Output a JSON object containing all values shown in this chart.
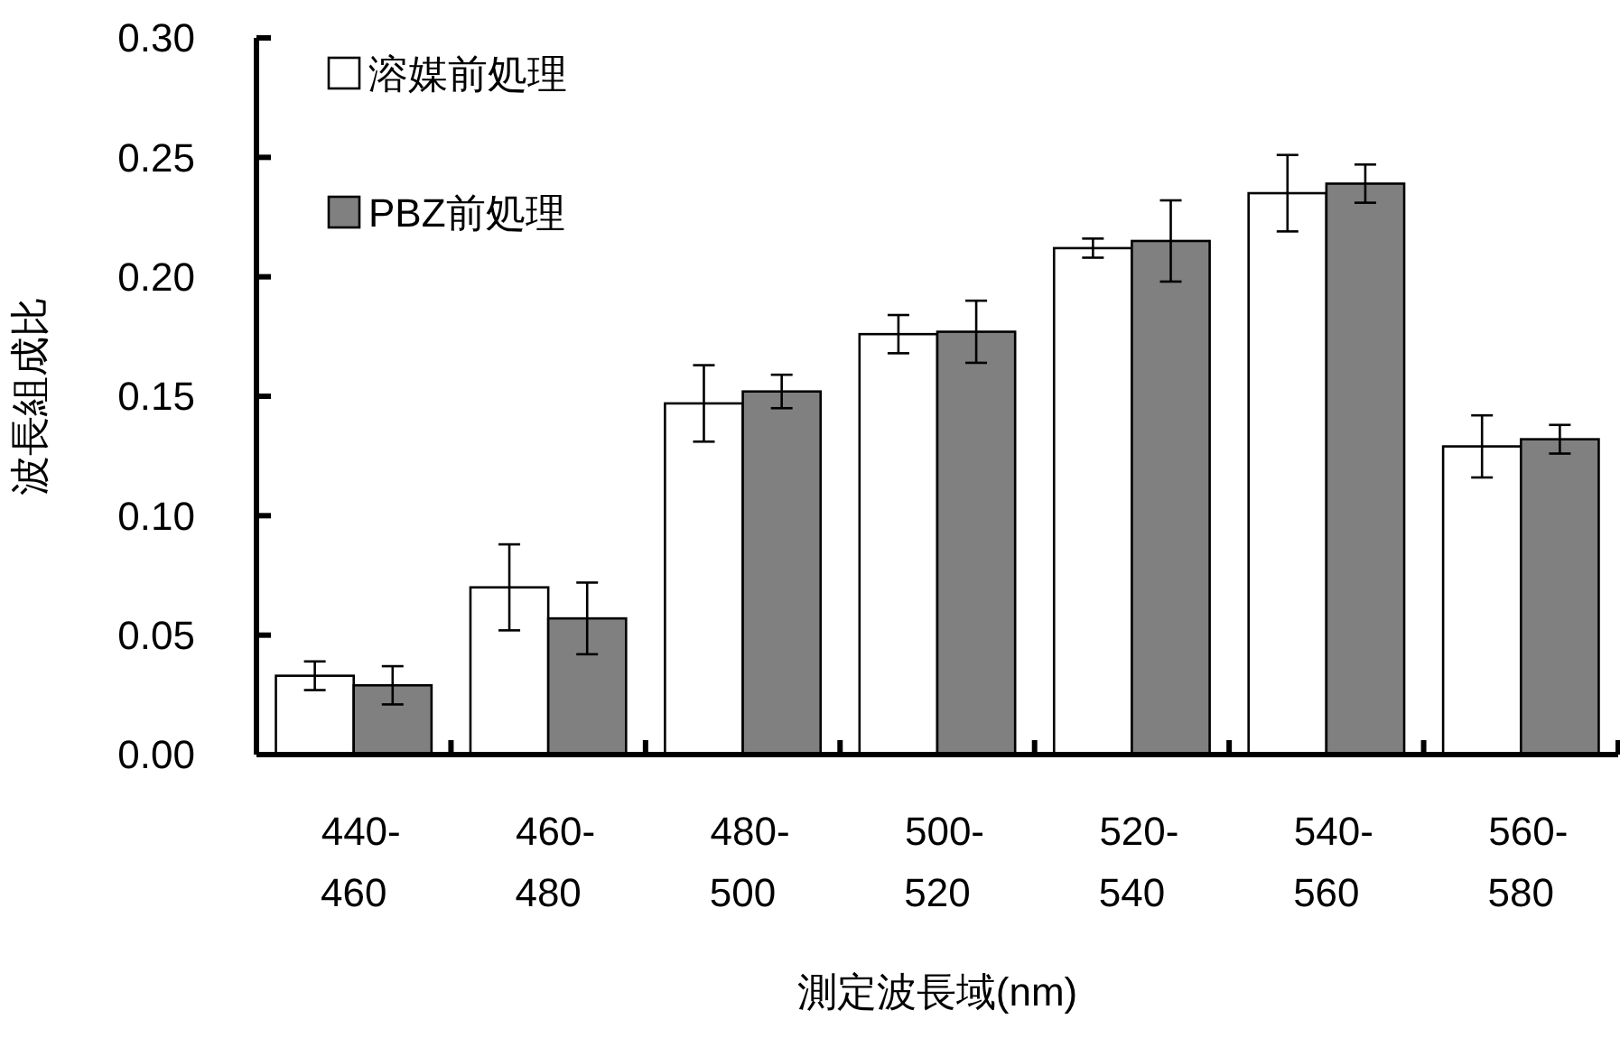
{
  "chart_data": {
    "type": "bar",
    "xlabel": "測定波長域(nm)",
    "ylabel": "波長組成比",
    "categories": [
      "440-460",
      "460-480",
      "480-500",
      "500-520",
      "520-540",
      "540-560",
      "560-580"
    ],
    "series": [
      {
        "name": "溶媒前処理",
        "color": "#ffffff",
        "values": [
          0.033,
          0.07,
          0.147,
          0.176,
          0.212,
          0.235,
          0.129
        ],
        "errors": [
          0.006,
          0.018,
          0.016,
          0.008,
          0.004,
          0.016,
          0.013
        ]
      },
      {
        "name": "PBZ前処理",
        "color": "#808080",
        "values": [
          0.029,
          0.057,
          0.152,
          0.177,
          0.215,
          0.239,
          0.132
        ],
        "errors": [
          0.008,
          0.015,
          0.007,
          0.013,
          0.017,
          0.008,
          0.006
        ]
      }
    ],
    "ylim": [
      0,
      0.3
    ],
    "yticks": [
      {
        "value": 0,
        "label": "0.00"
      },
      {
        "value": 0.05,
        "label": "0.05"
      },
      {
        "value": 0.1,
        "label": "0.10"
      },
      {
        "value": 0.15,
        "label": "0.15"
      },
      {
        "value": 0.2,
        "label": "0.20"
      },
      {
        "value": 0.25,
        "label": "0.25"
      },
      {
        "value": 0.3,
        "label": "0.30"
      }
    ],
    "grid": false,
    "legend": "top left"
  }
}
